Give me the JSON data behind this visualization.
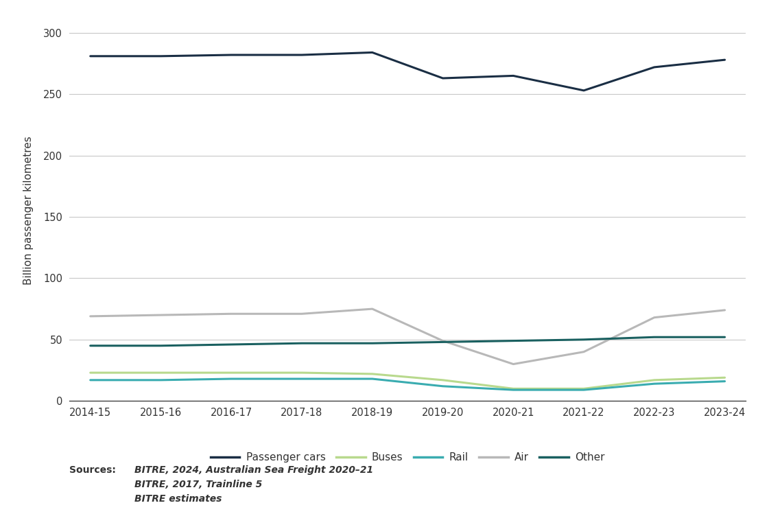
{
  "ylabel": "Billion passenger kilometres",
  "years": [
    "2014-15",
    "2015-16",
    "2016-17",
    "2017-18",
    "2018-19",
    "2019-20",
    "2020-21",
    "2021-22",
    "2022-23",
    "2023-24"
  ],
  "series": {
    "Passenger cars": {
      "values": [
        281,
        281,
        282,
        282,
        284,
        263,
        265,
        253,
        272,
        278
      ],
      "color": "#1a2e44",
      "linewidth": 2.2
    },
    "Buses": {
      "values": [
        23,
        23,
        23,
        23,
        22,
        17,
        10,
        10,
        17,
        19
      ],
      "color": "#b8d98d",
      "linewidth": 2.2
    },
    "Rail": {
      "values": [
        17,
        17,
        18,
        18,
        18,
        12,
        9,
        9,
        14,
        16
      ],
      "color": "#3aacb0",
      "linewidth": 2.2
    },
    "Air": {
      "values": [
        69,
        70,
        71,
        71,
        75,
        49,
        30,
        40,
        68,
        74
      ],
      "color": "#b8b8b8",
      "linewidth": 2.2
    },
    "Other": {
      "values": [
        45,
        45,
        46,
        47,
        47,
        48,
        49,
        50,
        52,
        52
      ],
      "color": "#1a6060",
      "linewidth": 2.2
    }
  },
  "ylim": [
    0,
    310
  ],
  "yticks": [
    0,
    50,
    100,
    150,
    200,
    250,
    300
  ],
  "background_color": "#ffffff",
  "grid_color": "#c8c8c8",
  "source_label": "Sources:",
  "source_lines": [
    "BITRE, 2024, Australian Sea Freight 2020–21",
    "BITRE, 2017, Trainline 5",
    "BITRE estimates"
  ]
}
